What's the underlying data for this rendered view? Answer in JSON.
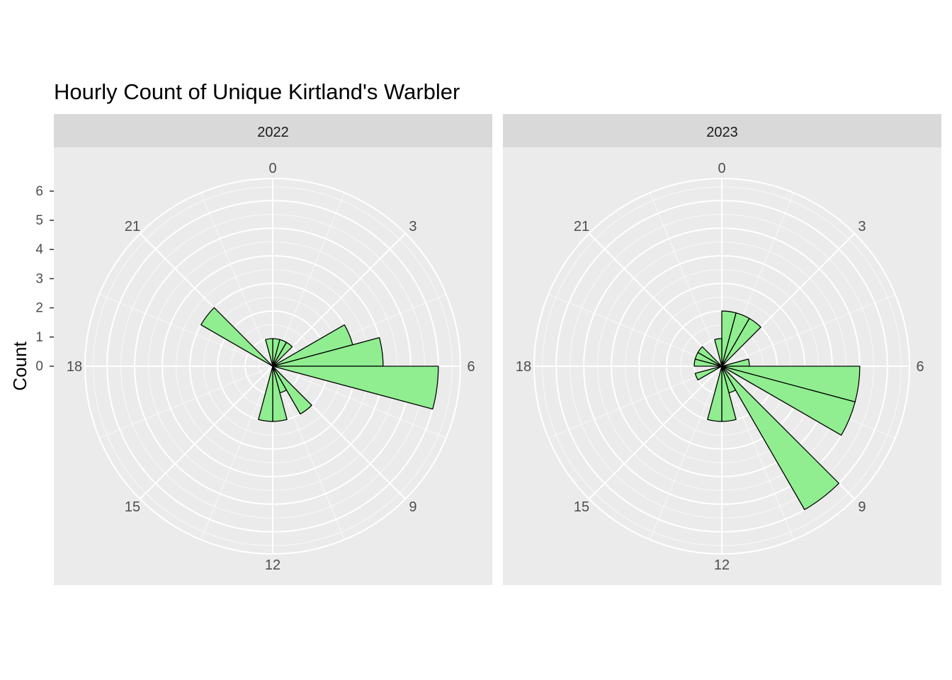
{
  "chart_data": {
    "type": "bar",
    "coord": "polar",
    "title": "Hourly Count of Unique Kirtland's Warbler",
    "xlabel": "",
    "ylabel": "Count",
    "y_ticks": [
      0,
      1,
      2,
      3,
      4,
      5,
      6
    ],
    "ylim": [
      0,
      6.8
    ],
    "x_ticks": [
      0,
      3,
      6,
      9,
      12,
      15,
      18,
      21
    ],
    "xlim": [
      0,
      24
    ],
    "grid": true,
    "fill_color": "#90EE90",
    "outline_color": "#000000",
    "panel_background": "#EBEBEB",
    "strip_background": "#D9D9D9",
    "grid_color": "#FFFFFF",
    "facets": [
      {
        "label": "2022",
        "hours": [
          0,
          1,
          2,
          3,
          4,
          5,
          6,
          7,
          8,
          9,
          10,
          11,
          12,
          13,
          14,
          15,
          16,
          17,
          18,
          19,
          20,
          21,
          22,
          23
        ],
        "values": [
          1,
          1,
          1,
          0,
          3,
          4,
          6,
          0,
          0,
          2,
          1,
          2,
          2,
          0,
          0,
          0,
          0,
          0,
          0,
          0,
          3,
          0,
          0,
          1
        ]
      },
      {
        "label": "2023",
        "hours": [
          0,
          1,
          2,
          3,
          4,
          5,
          6,
          7,
          8,
          9,
          10,
          11,
          12,
          13,
          14,
          15,
          16,
          17,
          18,
          19,
          20,
          21,
          22,
          23
        ],
        "values": [
          2,
          2,
          2,
          0,
          0,
          1,
          5,
          5,
          0,
          6,
          1,
          2,
          2,
          0,
          0,
          0,
          1,
          0,
          1,
          1,
          1,
          0,
          0,
          1
        ]
      }
    ]
  }
}
